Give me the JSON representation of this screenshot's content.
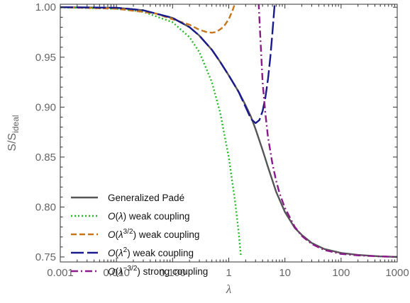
{
  "chart_data": {
    "type": "line",
    "xlabel": "λ",
    "ylabel": "S/S_ideal",
    "xscale": "log",
    "xlim": [
      0.001,
      1000
    ],
    "ylim": [
      0.745,
      1.003
    ],
    "x_ticks": [
      {
        "value": 0.001,
        "label": "0.001"
      },
      {
        "value": 0.01,
        "label": "0.010"
      },
      {
        "value": 0.1,
        "label": "0.100"
      },
      {
        "value": 1,
        "label": "1"
      },
      {
        "value": 10,
        "label": "10"
      },
      {
        "value": 100,
        "label": "100"
      },
      {
        "value": 1000,
        "label": "1000"
      }
    ],
    "y_ticks": [
      {
        "value": 0.75,
        "label": "0.75"
      },
      {
        "value": 0.8,
        "label": "0.80"
      },
      {
        "value": 0.85,
        "label": "0.85"
      },
      {
        "value": 0.9,
        "label": "0.90"
      },
      {
        "value": 0.95,
        "label": "0.95"
      },
      {
        "value": 1.0,
        "label": "1.00"
      }
    ],
    "grid": false,
    "legend_position": "bottom-left",
    "series": [
      {
        "name": "Generalized Padé",
        "color": "#555555",
        "dash": "solid",
        "points": [
          [
            0.001,
            1.0
          ],
          [
            0.01,
            0.9995
          ],
          [
            0.03,
            0.997
          ],
          [
            0.1,
            0.9893
          ],
          [
            0.2,
            0.98
          ],
          [
            0.3,
            0.9715
          ],
          [
            0.5,
            0.9574
          ],
          [
            0.7,
            0.9455
          ],
          [
            1.0,
            0.9318
          ],
          [
            1.5,
            0.9153
          ],
          [
            2.0,
            0.9017
          ],
          [
            2.5,
            0.89
          ],
          [
            3.0,
            0.878
          ],
          [
            4.0,
            0.857
          ],
          [
            5.0,
            0.84
          ],
          [
            7.0,
            0.815
          ],
          [
            10.0,
            0.795
          ],
          [
            15.0,
            0.779
          ],
          [
            20.0,
            0.772
          ],
          [
            30.0,
            0.764
          ],
          [
            50.0,
            0.758
          ],
          [
            100.0,
            0.754
          ],
          [
            200.0,
            0.752
          ],
          [
            500.0,
            0.7505
          ],
          [
            1000.0,
            0.75
          ]
        ]
      },
      {
        "name": "O(λ) weak coupling",
        "label_parts": [
          "O(λ) weak coupling"
        ],
        "color": "#22bb22",
        "dash": "dotted",
        "points": [
          [
            0.001,
            0.99985
          ],
          [
            0.01,
            0.9985
          ],
          [
            0.03,
            0.9955
          ],
          [
            0.1,
            0.985
          ],
          [
            0.2,
            0.97
          ],
          [
            0.3,
            0.955
          ],
          [
            0.5,
            0.925
          ],
          [
            0.7,
            0.895
          ],
          [
            1.0,
            0.85
          ],
          [
            1.3,
            0.805
          ],
          [
            1.5,
            0.775
          ],
          [
            1.65,
            0.75
          ]
        ]
      },
      {
        "name": "O(λ^{3/2}) weak coupling",
        "color": "#c8741a",
        "dash": "dashed",
        "points": [
          [
            0.001,
            1.0
          ],
          [
            0.01,
            0.9985
          ],
          [
            0.05,
            0.9938
          ],
          [
            0.1,
            0.988
          ],
          [
            0.2,
            0.9825
          ],
          [
            0.3,
            0.9774
          ],
          [
            0.4,
            0.9752
          ],
          [
            0.5,
            0.9745
          ],
          [
            0.6,
            0.9752
          ],
          [
            0.8,
            0.98
          ],
          [
            1.0,
            0.988
          ],
          [
            1.2,
            0.9985
          ],
          [
            1.3,
            1.005
          ]
        ]
      },
      {
        "name": "O(λ^2) weak coupling",
        "color": "#1a1a8c",
        "dash": "longdash",
        "points": [
          [
            0.001,
            1.0
          ],
          [
            0.01,
            0.9995
          ],
          [
            0.03,
            0.997
          ],
          [
            0.1,
            0.9893
          ],
          [
            0.2,
            0.98
          ],
          [
            0.3,
            0.9715
          ],
          [
            0.5,
            0.9574
          ],
          [
            0.7,
            0.9455
          ],
          [
            1.0,
            0.9318
          ],
          [
            1.5,
            0.9153
          ],
          [
            2.0,
            0.9
          ],
          [
            2.5,
            0.888
          ],
          [
            3.0,
            0.884
          ],
          [
            3.5,
            0.887
          ],
          [
            4.0,
            0.896
          ],
          [
            4.5,
            0.91
          ],
          [
            5.0,
            0.928
          ],
          [
            5.5,
            0.95
          ],
          [
            6.0,
            0.975
          ],
          [
            6.6,
            1.005
          ]
        ]
      },
      {
        "name": "O(λ^{-3/2}) strong coupling",
        "color": "#8b1a8b",
        "dash": "dashdot",
        "points": [
          [
            3.4,
            1.005
          ],
          [
            3.5,
            0.99
          ],
          [
            4.0,
            0.925
          ],
          [
            4.5,
            0.893
          ],
          [
            5.0,
            0.87
          ],
          [
            6.0,
            0.843
          ],
          [
            7.0,
            0.826
          ],
          [
            8.0,
            0.814
          ],
          [
            10.0,
            0.799
          ],
          [
            15.0,
            0.78
          ],
          [
            20.0,
            0.771
          ],
          [
            30.0,
            0.763
          ],
          [
            50.0,
            0.757
          ],
          [
            100.0,
            0.753
          ],
          [
            200.0,
            0.7515
          ],
          [
            500.0,
            0.7505
          ],
          [
            1000.0,
            0.75
          ]
        ]
      }
    ],
    "legend": [
      {
        "series": 0,
        "text": "Generalized Padé"
      },
      {
        "series": 1,
        "text": "O(λ) weak coupling"
      },
      {
        "series": 2,
        "text": "O(λ3/2) weak coupling"
      },
      {
        "series": 3,
        "text": "O(λ2) weak coupling"
      },
      {
        "series": 4,
        "text": "O(λ−3/2) strong coupling"
      }
    ]
  }
}
